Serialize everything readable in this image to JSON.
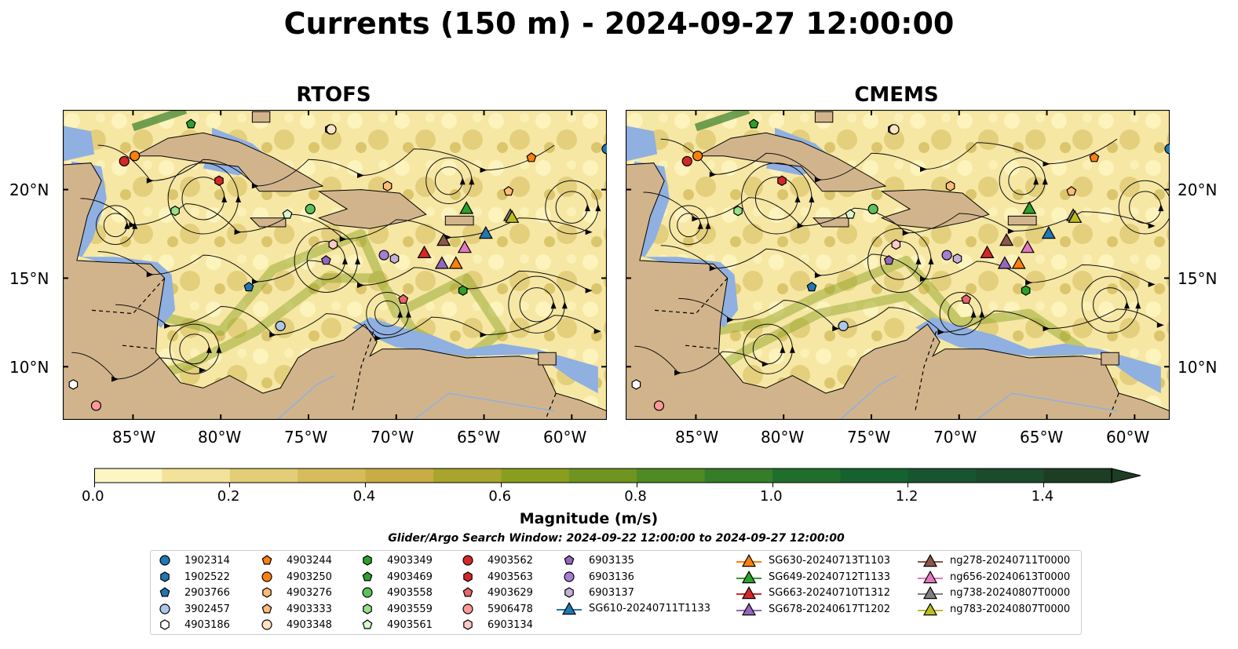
{
  "title": "Currents (150 m) - 2024-09-27 12:00:00",
  "panels": [
    {
      "title": "RTOFS"
    },
    {
      "title": "CMEMS"
    }
  ],
  "map_extent": {
    "lon": [
      -89,
      -58
    ],
    "lat": [
      7,
      24.5
    ]
  },
  "latitude_ticks": [
    "20°N",
    "15°N",
    "10°N"
  ],
  "longitude_ticks": [
    "85°W",
    "80°W",
    "75°W",
    "70°W",
    "65°W",
    "60°W"
  ],
  "colorbar": {
    "label": "Magnitude (m/s)",
    "ticks": [
      "0.0",
      "0.2",
      "0.4",
      "0.6",
      "0.8",
      "1.0",
      "1.2",
      "1.4"
    ],
    "range": [
      0,
      1.5
    ],
    "step": 0.1,
    "colors": [
      "#fdf6c3",
      "#f2e29a",
      "#e3cd76",
      "#d6bc5a",
      "#c8ad45",
      "#a9a52c",
      "#8a9e1d",
      "#6f941f",
      "#4f8a24",
      "#357d28",
      "#1f6e2c",
      "#15612f",
      "#175530",
      "#1b4a2c",
      "#1d3d24"
    ],
    "extend": "max"
  },
  "search_window": "Glider/Argo Search Window: 2024-09-22 12:00:00 to 2024-09-27 12:00:00",
  "colors": {
    "land": "#d2b48c",
    "shallow_water": "#8fb0e0",
    "ocean_low": "#fdf6c3"
  },
  "legend": {
    "argo": [
      {
        "label": "1902314",
        "marker": "circle",
        "color": "#1f77b4"
      },
      {
        "label": "1902522",
        "marker": "hexagon",
        "color": "#1f77b4"
      },
      {
        "label": "2903766",
        "marker": "pentagon",
        "color": "#1f77b4"
      },
      {
        "label": "3902457",
        "marker": "circle",
        "color": "#aec7e8"
      },
      {
        "label": "4903186",
        "marker": "hexagon",
        "color": "#ffffff"
      },
      {
        "label": "4903244",
        "marker": "pentagon",
        "color": "#ff7f0e"
      },
      {
        "label": "4903250",
        "marker": "circle",
        "color": "#ff7f0e"
      },
      {
        "label": "4903276",
        "marker": "hexagon",
        "color": "#ffbb78"
      },
      {
        "label": "4903333",
        "marker": "pentagon",
        "color": "#ffbb78"
      },
      {
        "label": "4903348",
        "marker": "circle",
        "color": "#ffe4c4"
      },
      {
        "label": "4903349",
        "marker": "hexagon",
        "color": "#2ca02c"
      },
      {
        "label": "4903469",
        "marker": "pentagon",
        "color": "#2ca02c"
      },
      {
        "label": "4903558",
        "marker": "circle",
        "color": "#5cc15c"
      },
      {
        "label": "4903559",
        "marker": "hexagon",
        "color": "#98df8a"
      },
      {
        "label": "4903561",
        "marker": "pentagon",
        "color": "#d9f7cf"
      },
      {
        "label": "4903562",
        "marker": "circle",
        "color": "#d62728"
      },
      {
        "label": "4903563",
        "marker": "hexagon",
        "color": "#d62728"
      },
      {
        "label": "4903629",
        "marker": "pentagon",
        "color": "#e8666a"
      },
      {
        "label": "5906478",
        "marker": "circle",
        "color": "#ff9896"
      },
      {
        "label": "6903134",
        "marker": "hexagon",
        "color": "#ffc9c9"
      },
      {
        "label": "6903135",
        "marker": "pentagon",
        "color": "#9467bd"
      },
      {
        "label": "6903136",
        "marker": "circle",
        "color": "#a47fd1"
      },
      {
        "label": "6903137",
        "marker": "hexagon",
        "color": "#c5b0d5"
      }
    ],
    "gliders": [
      {
        "label": "SG610-20240711T1133",
        "color": "#1f77b4"
      },
      {
        "label": "SG630-20240713T1103",
        "color": "#ff7f0e"
      },
      {
        "label": "SG649-20240712T1133",
        "color": "#2ca02c"
      },
      {
        "label": "SG663-20240710T1312",
        "color": "#d62728"
      },
      {
        "label": "SG678-20240617T1202",
        "color": "#9467bd"
      },
      {
        "label": "ng278-20240711T0000",
        "color": "#8c564b"
      },
      {
        "label": "ng656-20240613T0000",
        "color": "#e377c2"
      },
      {
        "label": "ng738-20240807T0000",
        "color": "#7f7f7f"
      },
      {
        "label": "ng783-20240807T0000",
        "color": "#bcbd22"
      }
    ]
  },
  "argo_positions": [
    {
      "id": "1902314",
      "lon": -58.0,
      "lat": 22.3
    },
    {
      "id": "1902522",
      "lon": -73.8,
      "lat": 23.4
    },
    {
      "id": "2903766",
      "lon": -78.4,
      "lat": 14.5
    },
    {
      "id": "3902457",
      "lon": -76.6,
      "lat": 12.3
    },
    {
      "id": "4903186",
      "lon": -88.4,
      "lat": 9.0
    },
    {
      "id": "4903244",
      "lon": -62.3,
      "lat": 21.8
    },
    {
      "id": "4903250",
      "lon": -84.9,
      "lat": 21.9
    },
    {
      "id": "4903276",
      "lon": -70.5,
      "lat": 20.2
    },
    {
      "id": "4903333",
      "lon": -63.6,
      "lat": 19.9
    },
    {
      "id": "4903348",
      "lon": -73.7,
      "lat": 23.4
    },
    {
      "id": "4903349",
      "lon": -66.2,
      "lat": 14.3
    },
    {
      "id": "4903469",
      "lon": -81.7,
      "lat": 23.7
    },
    {
      "id": "4903558",
      "lon": -74.9,
      "lat": 18.9
    },
    {
      "id": "4903559",
      "lon": -82.6,
      "lat": 18.8
    },
    {
      "id": "4903561",
      "lon": -76.2,
      "lat": 18.6
    },
    {
      "id": "4903562",
      "lon": -85.5,
      "lat": 21.6
    },
    {
      "id": "4903563",
      "lon": -80.1,
      "lat": 20.5
    },
    {
      "id": "4903629",
      "lon": -69.6,
      "lat": 13.8
    },
    {
      "id": "5906478",
      "lon": -87.1,
      "lat": 7.8
    },
    {
      "id": "6903134",
      "lon": -73.6,
      "lat": 16.9
    },
    {
      "id": "6903135",
      "lon": -74.0,
      "lat": 16.0
    },
    {
      "id": "6903136",
      "lon": -70.7,
      "lat": 16.3
    },
    {
      "id": "6903137",
      "lon": -70.1,
      "lat": 16.1
    }
  ],
  "glider_positions": [
    {
      "id": "SG610-20240711T1133",
      "lon": -64.9,
      "lat": 17.5
    },
    {
      "id": "SG630-20240713T1103",
      "lon": -66.6,
      "lat": 15.8
    },
    {
      "id": "SG649-20240712T1133",
      "lon": -66.0,
      "lat": 18.9
    },
    {
      "id": "SG663-20240710T1312",
      "lon": -68.4,
      "lat": 16.4
    },
    {
      "id": "SG678-20240617T1202",
      "lon": -67.4,
      "lat": 15.8
    },
    {
      "id": "ng278-20240711T0000",
      "lon": -67.3,
      "lat": 17.1
    },
    {
      "id": "ng656-20240613T0000",
      "lon": -66.1,
      "lat": 16.7
    },
    {
      "id": "ng738-20240807T0000",
      "lon": -63.5,
      "lat": 18.5
    },
    {
      "id": "ng783-20240807T0000",
      "lon": -63.4,
      "lat": 18.4
    }
  ]
}
